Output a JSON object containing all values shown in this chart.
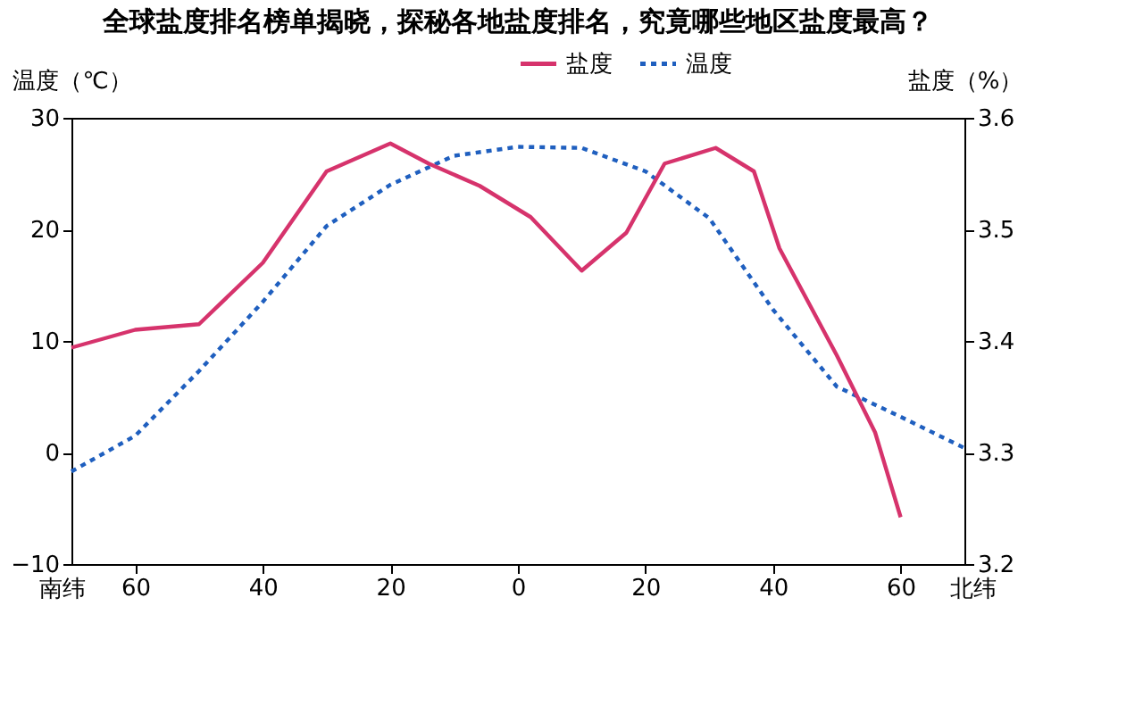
{
  "chart_data": {
    "type": "line",
    "title": "全球盐度排名榜单揭晓，探秘各地盐度排名，究竟哪些地区盐度最高？",
    "ylabel": "温度（℃）",
    "y2label": "盐度（%）",
    "annotations": [
      "南纬",
      "北纬"
    ],
    "xlim": [
      -70,
      70
    ],
    "xticks": [
      {
        "value": -60,
        "label": "60"
      },
      {
        "value": -40,
        "label": "40"
      },
      {
        "value": -20,
        "label": "20"
      },
      0,
      {
        "value": 20,
        "label": "20"
      },
      {
        "value": 40,
        "label": "40"
      },
      {
        "value": 60,
        "label": "60"
      }
    ],
    "ylim": [
      -10,
      30
    ],
    "yticks": [
      -10,
      0,
      10,
      20,
      30
    ],
    "y2lim": [
      3.2,
      3.6
    ],
    "y2ticks": [
      3.2,
      3.3,
      3.4,
      3.5,
      3.6
    ],
    "grid": false,
    "legend": "top",
    "marker": "none",
    "series": [
      {
        "name": "盐度",
        "color": "#d6336c",
        "line_style": "solid",
        "axis": "y2",
        "x": [
          -70,
          -60,
          -50,
          -40,
          -30,
          -20,
          -14,
          -6,
          2,
          10,
          17,
          23,
          31,
          37,
          41,
          50,
          56,
          60
        ],
        "values": [
          3.394,
          3.41,
          3.415,
          3.47,
          3.552,
          3.577,
          3.559,
          3.539,
          3.511,
          3.463,
          3.497,
          3.559,
          3.573,
          3.552,
          3.483,
          3.387,
          3.318,
          3.242
        ]
      },
      {
        "name": "温度",
        "color": "#1f5fbf",
        "line_style": "dotted",
        "axis": "y",
        "x": [
          -70,
          -60,
          -50,
          -40,
          -30,
          -20,
          -10,
          0,
          10,
          20,
          30,
          40,
          50,
          60,
          70
        ],
        "values": [
          -1.7,
          1.5,
          7.3,
          13.5,
          20.3,
          24,
          26.6,
          27.4,
          27.3,
          25.2,
          21,
          12.8,
          5.9,
          3.2,
          0.4
        ]
      }
    ]
  }
}
